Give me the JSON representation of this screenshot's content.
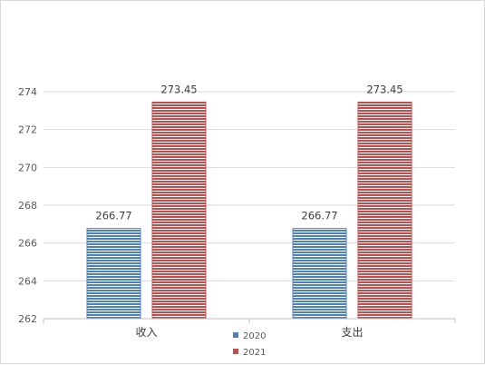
{
  "chart_data": {
    "type": "bar",
    "categories": [
      "收入",
      "支出"
    ],
    "series": [
      {
        "name": "2020",
        "values": [
          266.77,
          266.77
        ],
        "color": "#4f81bd",
        "labels": [
          "266.77",
          "266.77"
        ]
      },
      {
        "name": "2021",
        "values": [
          273.45,
          273.45
        ],
        "color": "#c0504d",
        "labels": [
          "273.45",
          "273.45"
        ]
      }
    ],
    "ylim": [
      262,
      274
    ],
    "yticks": [
      "262",
      "264",
      "266",
      "268",
      "270",
      "272",
      "274"
    ],
    "grid": true,
    "legend": "bottom",
    "bar_pattern": "horizontal-stripes",
    "title": "",
    "xlabel": "",
    "ylabel": ""
  }
}
